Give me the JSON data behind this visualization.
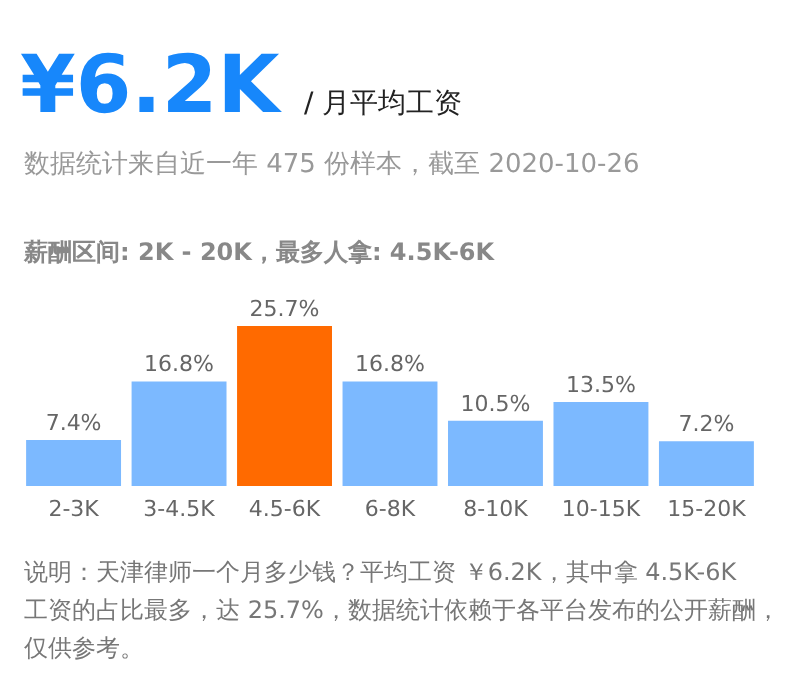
{
  "chart_data": {
    "type": "bar",
    "title": "¥6.2K",
    "subtitle": "/ 月平均工资",
    "categories": [
      "2-3K",
      "3-4.5K",
      "4.5-6K",
      "6-8K",
      "8-10K",
      "10-15K",
      "15-20K"
    ],
    "values": [
      7.4,
      16.8,
      25.7,
      16.8,
      10.5,
      13.5,
      7.2
    ],
    "colors": [
      "#7cb9ff",
      "#7cb9ff",
      "#ff6a00",
      "#7cb9ff",
      "#7cb9ff",
      "#7cb9ff",
      "#7cb9ff"
    ],
    "value_labels": [
      "7.4%",
      "16.8%",
      "25.7%",
      "16.8%",
      "10.5%",
      "13.5%",
      "7.2%"
    ],
    "annotations": [
      "数据统计来自近一年 475 份样本，截至 2020-10-26",
      "薪酬区间: 2K - 20K，最多人拿: 4.5K-6K",
      "说明：天津律师一个月多少钱？平均工资 ￥6.2K，其中拿 4.5K-6K 工资的占比最多，达 25.7%，数据统计依赖于各平台发布的公开薪酬，仅供参考。"
    ]
  }
}
